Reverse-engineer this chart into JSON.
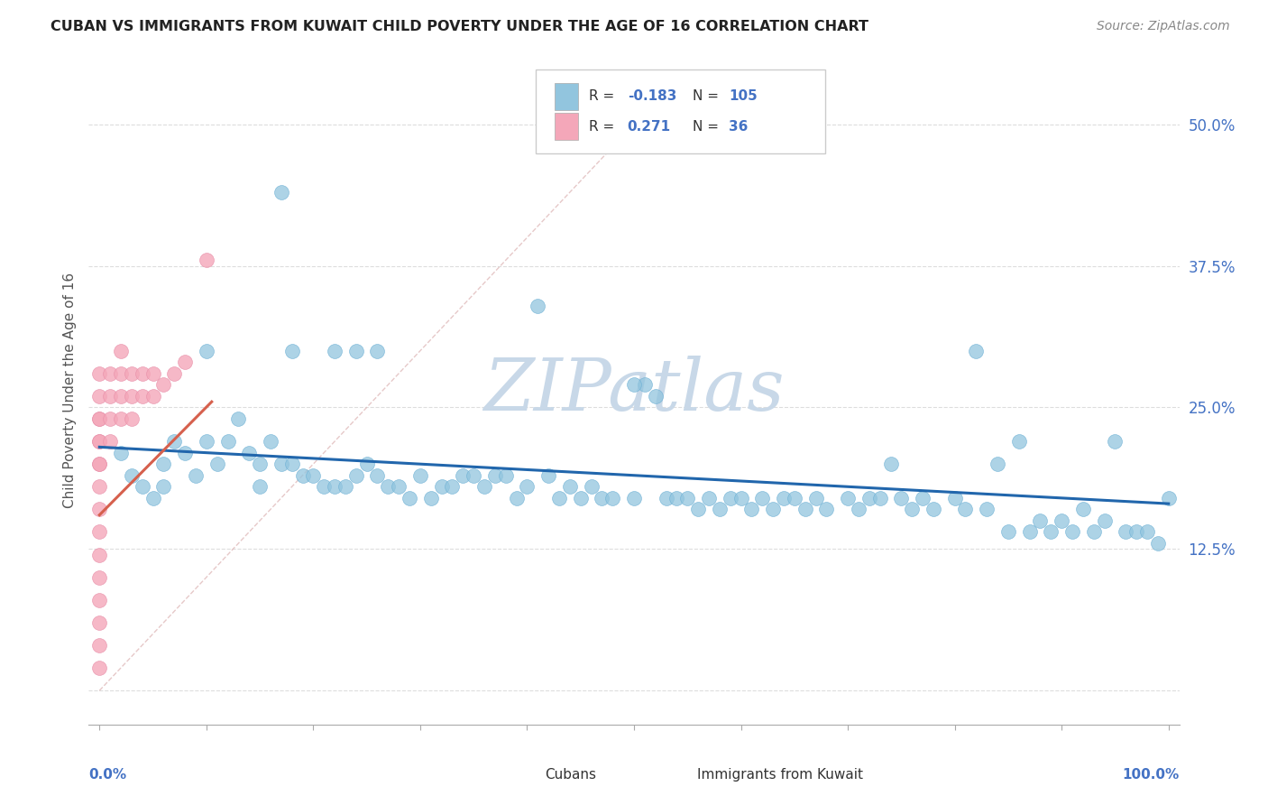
{
  "title": "CUBAN VS IMMIGRANTS FROM KUWAIT CHILD POVERTY UNDER THE AGE OF 16 CORRELATION CHART",
  "source": "Source: ZipAtlas.com",
  "ylabel": "Child Poverty Under the Age of 16",
  "ytick_values": [
    0.0,
    0.125,
    0.25,
    0.375,
    0.5
  ],
  "ytick_labels": [
    "",
    "12.5%",
    "25.0%",
    "37.5%",
    "50.0%"
  ],
  "xlim": [
    -0.01,
    1.01
  ],
  "ylim": [
    -0.03,
    0.56
  ],
  "color_blue": "#92C5DE",
  "color_blue_edge": "#6AAFD4",
  "color_pink": "#F4A7B9",
  "color_pink_edge": "#E88EA8",
  "color_blue_line": "#2166AC",
  "color_pink_line": "#D6604D",
  "color_diag": "#E0BBBB",
  "watermark_color": "#C8D8E8",
  "bg_color": "#FFFFFF",
  "cubans_x": [
    0.02,
    0.03,
    0.04,
    0.05,
    0.06,
    0.06,
    0.07,
    0.08,
    0.09,
    0.1,
    0.1,
    0.11,
    0.12,
    0.13,
    0.14,
    0.15,
    0.15,
    0.16,
    0.17,
    0.18,
    0.19,
    0.2,
    0.21,
    0.22,
    0.23,
    0.24,
    0.25,
    0.26,
    0.27,
    0.28,
    0.29,
    0.3,
    0.31,
    0.32,
    0.33,
    0.34,
    0.35,
    0.36,
    0.37,
    0.38,
    0.39,
    0.4,
    0.41,
    0.42,
    0.43,
    0.44,
    0.45,
    0.46,
    0.47,
    0.48,
    0.5,
    0.51,
    0.52,
    0.53,
    0.54,
    0.55,
    0.56,
    0.57,
    0.58,
    0.59,
    0.6,
    0.61,
    0.62,
    0.63,
    0.64,
    0.65,
    0.66,
    0.67,
    0.68,
    0.7,
    0.71,
    0.72,
    0.73,
    0.74,
    0.75,
    0.76,
    0.77,
    0.78,
    0.8,
    0.81,
    0.82,
    0.83,
    0.84,
    0.85,
    0.86,
    0.87,
    0.88,
    0.89,
    0.9,
    0.91,
    0.92,
    0.93,
    0.94,
    0.95,
    0.96,
    0.97,
    0.98,
    0.99,
    1.0,
    0.17,
    0.18,
    0.22,
    0.24,
    0.26,
    0.5
  ],
  "cubans_y": [
    0.21,
    0.19,
    0.18,
    0.17,
    0.2,
    0.18,
    0.22,
    0.21,
    0.19,
    0.3,
    0.22,
    0.2,
    0.22,
    0.24,
    0.21,
    0.2,
    0.18,
    0.22,
    0.2,
    0.2,
    0.19,
    0.19,
    0.18,
    0.18,
    0.18,
    0.19,
    0.2,
    0.19,
    0.18,
    0.18,
    0.17,
    0.19,
    0.17,
    0.18,
    0.18,
    0.19,
    0.19,
    0.18,
    0.19,
    0.19,
    0.17,
    0.18,
    0.34,
    0.19,
    0.17,
    0.18,
    0.17,
    0.18,
    0.17,
    0.17,
    0.17,
    0.27,
    0.26,
    0.17,
    0.17,
    0.17,
    0.16,
    0.17,
    0.16,
    0.17,
    0.17,
    0.16,
    0.17,
    0.16,
    0.17,
    0.17,
    0.16,
    0.17,
    0.16,
    0.17,
    0.16,
    0.17,
    0.17,
    0.2,
    0.17,
    0.16,
    0.17,
    0.16,
    0.17,
    0.16,
    0.3,
    0.16,
    0.2,
    0.14,
    0.22,
    0.14,
    0.15,
    0.14,
    0.15,
    0.14,
    0.16,
    0.14,
    0.15,
    0.22,
    0.14,
    0.14,
    0.14,
    0.13,
    0.17,
    0.44,
    0.3,
    0.3,
    0.3,
    0.3,
    0.27
  ],
  "kuwait_x": [
    0.0,
    0.0,
    0.0,
    0.0,
    0.0,
    0.0,
    0.0,
    0.0,
    0.0,
    0.0,
    0.0,
    0.0,
    0.0,
    0.0,
    0.0,
    0.0,
    0.0,
    0.01,
    0.01,
    0.01,
    0.01,
    0.02,
    0.02,
    0.02,
    0.02,
    0.03,
    0.03,
    0.03,
    0.04,
    0.04,
    0.05,
    0.05,
    0.06,
    0.07,
    0.08,
    0.1
  ],
  "kuwait_y": [
    0.2,
    0.22,
    0.24,
    0.2,
    0.18,
    0.16,
    0.14,
    0.12,
    0.1,
    0.08,
    0.06,
    0.04,
    0.02,
    0.22,
    0.24,
    0.26,
    0.28,
    0.22,
    0.24,
    0.26,
    0.28,
    0.24,
    0.26,
    0.28,
    0.3,
    0.24,
    0.26,
    0.28,
    0.26,
    0.28,
    0.26,
    0.28,
    0.27,
    0.28,
    0.29,
    0.38
  ],
  "blue_trend_x0": 0.0,
  "blue_trend_x1": 1.0,
  "blue_trend_y0": 0.215,
  "blue_trend_y1": 0.165,
  "pink_trend_x0": 0.0,
  "pink_trend_x1": 0.105,
  "pink_trend_y0": 0.155,
  "pink_trend_y1": 0.255
}
